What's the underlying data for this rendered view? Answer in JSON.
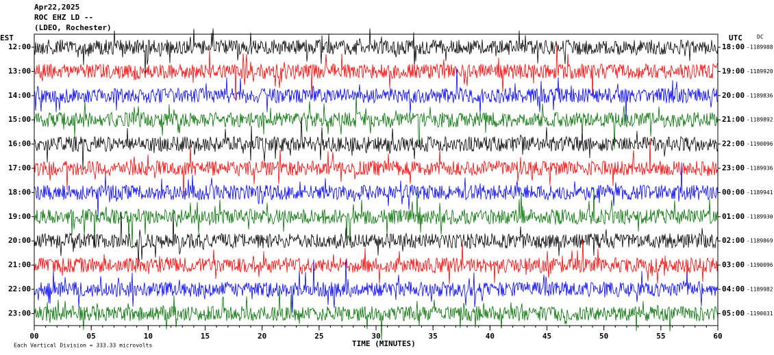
{
  "chart_data": {
    "type": "helicorder",
    "title": "Apr22,2025",
    "subtitle": "ROC EHZ LD --",
    "network": "(LDEO, Rochester)",
    "left_axis_label": "EST",
    "right_axis_label": "UTC",
    "dc_label": "DC",
    "categories": [
      "12:00",
      "13:00",
      "14:00",
      "15:00",
      "16:00",
      "17:00",
      "18:00",
      "19:00",
      "20:00",
      "21:00",
      "22:00",
      "23:00"
    ],
    "utc_labels": [
      "18:00",
      "19:00",
      "20:00",
      "21:00",
      "22:00",
      "23:00",
      "00:00",
      "01:00",
      "02:00",
      "03:00",
      "04:00",
      "05:00"
    ],
    "dc_values": [
      -1189988,
      -1189920,
      -1189836,
      -1189892,
      -1190096,
      -1189936,
      -1189941,
      -1189930,
      -1189869,
      -1190096,
      -1189982,
      -1190031
    ],
    "colors": [
      "#000000",
      "#ff0000",
      "#0000ff",
      "#007000"
    ],
    "xlabel": "TIME (MINUTES)",
    "xlim": [
      0,
      60
    ],
    "xticks": [
      {
        "value": 0,
        "label": "00"
      },
      {
        "value": 5,
        "label": "05"
      },
      10,
      15,
      20,
      25,
      30,
      35,
      40,
      45,
      50,
      55,
      60
    ],
    "footnote": "Each Vertical Division = 333.33 microvolts"
  }
}
